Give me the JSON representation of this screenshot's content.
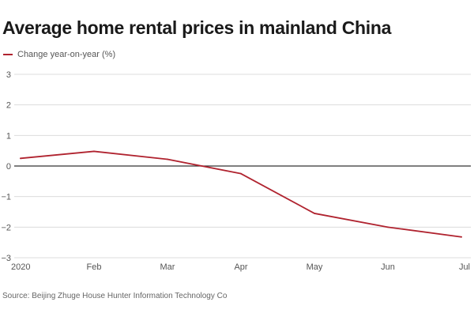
{
  "colors": {
    "series": "#b0232f",
    "grid": "#dcdcdc",
    "zero_line": "#333333",
    "text": "#1a1a1a",
    "muted": "#555555"
  },
  "chart_data": {
    "type": "line",
    "title": "Average home rental prices in mainland China",
    "xlabel": "",
    "ylabel": "",
    "x_ticks": [
      "2020",
      "Feb",
      "Mar",
      "Apr",
      "May",
      "Jun",
      "Jul"
    ],
    "ylim": [
      -3,
      3
    ],
    "y_ticks": [
      3,
      2,
      1,
      0,
      -1,
      -2,
      -3
    ],
    "y_tick_labels": [
      "3",
      "2",
      "1",
      "0",
      "−1",
      "−2",
      "−3"
    ],
    "grid": "horizontal",
    "legend_position": "top-left",
    "series": [
      {
        "name": "Change year-on-year (%)",
        "values": [
          0.25,
          0.48,
          0.22,
          -0.25,
          -1.55,
          -2.0,
          -2.32
        ]
      }
    ],
    "source": "Source: Beijing Zhuge House Hunter Information Technology Co"
  }
}
